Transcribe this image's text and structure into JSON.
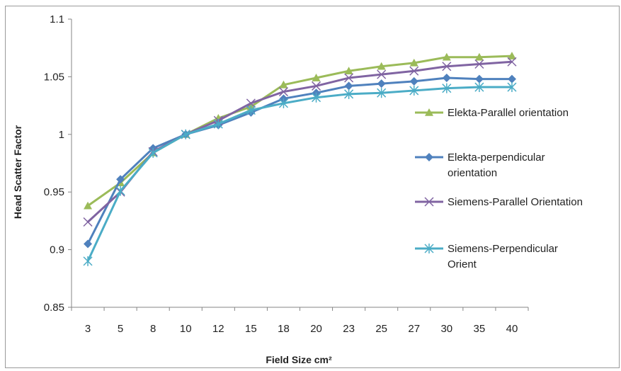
{
  "chart_data": {
    "type": "line",
    "title": "",
    "xlabel": "Field Size cm²",
    "ylabel": "Head Scatter Factor",
    "categories": [
      "3",
      "5",
      "8",
      "10",
      "12",
      "15",
      "18",
      "20",
      "23",
      "25",
      "27",
      "30",
      "35",
      "40"
    ],
    "ylim": [
      0.85,
      1.1
    ],
    "yticks": [
      "0.85",
      "0.9",
      "0.95",
      "1",
      "1.05",
      "1.1"
    ],
    "grid": false,
    "legend_position": "right",
    "series": [
      {
        "name": "Elekta-Parallel orientation",
        "color": "#9bbb59",
        "marker": "triangle",
        "values": [
          0.938,
          0.958,
          0.984,
          1.0,
          1.014,
          1.024,
          1.043,
          1.049,
          1.055,
          1.059,
          1.062,
          1.067,
          1.067,
          1.068
        ]
      },
      {
        "name": "Elekta-perpendicular orientation",
        "color": "#4f81bd",
        "marker": "diamond",
        "values": [
          0.905,
          0.961,
          0.988,
          1.0,
          1.008,
          1.019,
          1.031,
          1.036,
          1.042,
          1.044,
          1.046,
          1.049,
          1.048,
          1.048
        ]
      },
      {
        "name": "Siemens-Parallel Orientation",
        "color": "#8064a2",
        "marker": "x",
        "values": [
          0.924,
          0.95,
          0.985,
          1.0,
          1.012,
          1.027,
          1.037,
          1.042,
          1.049,
          1.052,
          1.055,
          1.059,
          1.061,
          1.063
        ]
      },
      {
        "name": "Siemens-Perpendicular Orient",
        "color": "#4bacc6",
        "marker": "star",
        "values": [
          0.89,
          0.951,
          0.984,
          1.0,
          1.009,
          1.021,
          1.027,
          1.032,
          1.035,
          1.036,
          1.038,
          1.04,
          1.041,
          1.041
        ]
      }
    ]
  }
}
